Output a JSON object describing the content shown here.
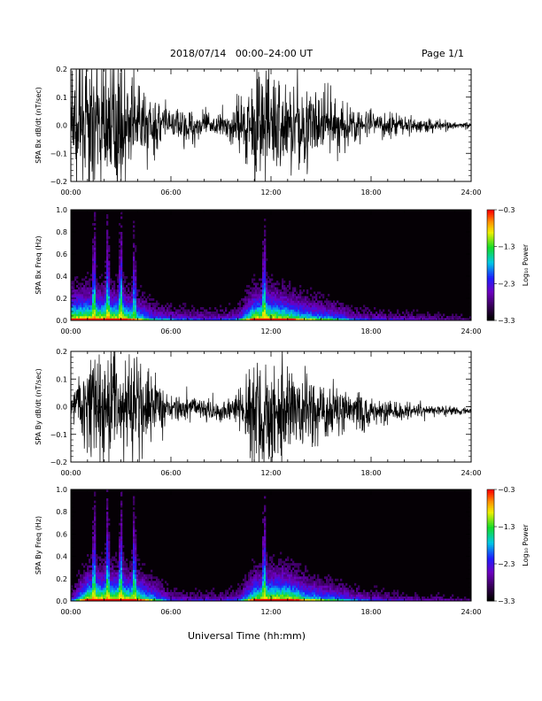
{
  "header": {
    "title": "2018/07/14   00:00–24:00 UT",
    "page": "Page 1/1"
  },
  "chart_data": [
    {
      "type": "line",
      "panel": "bx-dbdt",
      "ylabel": "SPA Bx dB/dt (nT/sec)",
      "xlabel": "",
      "xlim": [
        0,
        24
      ],
      "ylim": [
        -0.2,
        0.2
      ],
      "yticks": [
        "0.2",
        "0.1",
        "0.0",
        "−0.1",
        "−0.2"
      ],
      "yticks_values": [
        0.2,
        0.1,
        0.0,
        -0.1,
        -0.2
      ],
      "xticks": [
        "00:00",
        "06:00",
        "12:00",
        "18:00",
        "24:00"
      ],
      "series": [
        {
          "x": [
            0,
            1,
            2,
            3,
            4,
            5,
            6,
            7,
            8,
            9,
            10,
            11,
            12,
            13,
            14,
            15,
            16,
            17,
            18,
            19,
            20,
            21,
            22,
            23,
            24
          ],
          "values": [
            0.2,
            0.2,
            0.2,
            0.2,
            0.15,
            0.09,
            0.07,
            0.06,
            0.05,
            0.05,
            0.07,
            0.2,
            0.2,
            0.18,
            0.14,
            0.12,
            0.1,
            0.06,
            0.05,
            0.04,
            0.035,
            0.03,
            0.02,
            0.015,
            0.01
          ]
        }
      ]
    },
    {
      "type": "heatmap",
      "panel": "bx-spectrogram",
      "ylabel": "SPA Bx Freq (Hz)",
      "xlim": [
        0,
        24
      ],
      "ylim": [
        0,
        1.0
      ],
      "yticks": [
        "1.0",
        "0.8",
        "0.6",
        "0.4",
        "0.2",
        "0.0"
      ],
      "yticks_values": [
        1.0,
        0.8,
        0.6,
        0.4,
        0.2,
        0.0
      ],
      "xticks": [
        "00:00",
        "06:00",
        "12:00",
        "18:00",
        "24:00"
      ],
      "colorbar": {
        "label": "Log₁₀ Power",
        "ticks": [
          "−0.3",
          "−1.3",
          "−2.3",
          "−3.3"
        ],
        "range": [
          -3.3,
          -0.3
        ]
      }
    },
    {
      "type": "line",
      "panel": "by-dbdt",
      "ylabel": "SPA By dB/dt (nT/sec)",
      "xlim": [
        0,
        24
      ],
      "ylim": [
        -0.2,
        0.2
      ],
      "yticks": [
        "0.2",
        "0.1",
        "0.0",
        "−0.1",
        "−0.2"
      ],
      "yticks_values": [
        0.2,
        0.1,
        0.0,
        -0.1,
        -0.2
      ],
      "xticks": [
        "00:00",
        "06:00",
        "12:00",
        "18:00",
        "24:00"
      ],
      "series": [
        {
          "x": [
            0,
            1,
            2,
            3,
            4,
            5,
            6,
            7,
            8,
            9,
            10,
            11,
            12,
            13,
            14,
            15,
            16,
            17,
            18,
            19,
            20,
            21,
            22,
            23,
            24
          ],
          "values": [
            0.05,
            0.2,
            0.2,
            0.2,
            0.18,
            0.12,
            0.05,
            0.04,
            0.04,
            0.04,
            0.06,
            0.18,
            0.2,
            0.2,
            0.15,
            0.12,
            0.1,
            0.07,
            0.05,
            0.04,
            0.03,
            0.025,
            0.02,
            0.015,
            0.01
          ]
        }
      ]
    },
    {
      "type": "heatmap",
      "panel": "by-spectrogram",
      "ylabel": "SPA By Freq (Hz)",
      "xlim": [
        0,
        24
      ],
      "ylim": [
        0,
        1.0
      ],
      "yticks": [
        "1.0",
        "0.8",
        "0.6",
        "0.4",
        "0.2",
        "0.0"
      ],
      "yticks_values": [
        1.0,
        0.8,
        0.6,
        0.4,
        0.2,
        0.0
      ],
      "xticks": [
        "00:00",
        "06:00",
        "12:00",
        "18:00",
        "24:00"
      ],
      "colorbar": {
        "label": "Log₁₀ Power",
        "ticks": [
          "−0.3",
          "−1.3",
          "−2.3",
          "−3.3"
        ],
        "range": [
          -3.3,
          -0.3
        ]
      }
    }
  ],
  "footer": {
    "xlabel": "Universal Time (hh:mm)"
  },
  "colors": {
    "background": "#ffffff",
    "trace": "#000000",
    "spectrogram_bg": "#050005"
  }
}
